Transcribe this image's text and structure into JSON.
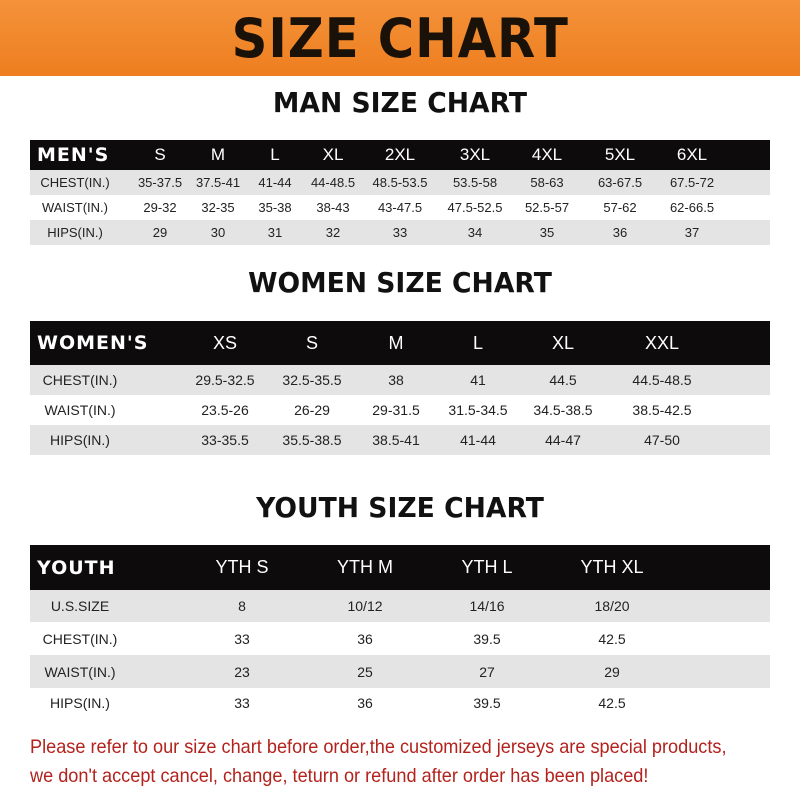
{
  "banner_title": "SIZE CHART",
  "men": {
    "title": "MAN SIZE CHART",
    "header": [
      "MEN'S",
      "S",
      "M",
      "L",
      "XL",
      "2XL",
      "3XL",
      "4XL",
      "5XL",
      "6XL"
    ],
    "rows": [
      [
        "CHEST(IN.)",
        "35-37.5",
        "37.5-41",
        "41-44",
        "44-48.5",
        "48.5-53.5",
        "53.5-58",
        "58-63",
        "63-67.5",
        "67.5-72"
      ],
      [
        "WAIST(IN.)",
        "29-32",
        "32-35",
        "35-38",
        "38-43",
        "43-47.5",
        "47.5-52.5",
        "52.5-57",
        "57-62",
        "62-66.5"
      ],
      [
        "HIPS(IN.)",
        "29",
        "30",
        "31",
        "32",
        "33",
        "34",
        "35",
        "36",
        "37"
      ]
    ]
  },
  "women": {
    "title": "WOMEN SIZE CHART",
    "header": [
      "WOMEN'S",
      "XS",
      "S",
      "M",
      "L",
      "XL",
      "XXL"
    ],
    "rows": [
      [
        "CHEST(IN.)",
        "29.5-32.5",
        "32.5-35.5",
        "38",
        "41",
        "44.5",
        "44.5-48.5"
      ],
      [
        "WAIST(IN.)",
        "23.5-26",
        "26-29",
        "29-31.5",
        "31.5-34.5",
        "34.5-38.5",
        "38.5-42.5"
      ],
      [
        "HIPS(IN.)",
        "33-35.5",
        "35.5-38.5",
        "38.5-41",
        "41-44",
        "44-47",
        "47-50"
      ]
    ]
  },
  "youth": {
    "title": "YOUTH SIZE CHART",
    "header": [
      "YOUTH",
      "YTH S",
      "YTH M",
      "YTH L",
      "YTH XL"
    ],
    "rows": [
      [
        "U.S.SIZE",
        "8",
        "10/12",
        "14/16",
        "18/20"
      ],
      [
        "CHEST(IN.)",
        "33",
        "36",
        "39.5",
        "42.5"
      ],
      [
        "WAIST(IN.)",
        "23",
        "25",
        "27",
        "29"
      ],
      [
        "HIPS(IN.)",
        "33",
        "36",
        "39.5",
        "42.5"
      ]
    ]
  },
  "notice": [
    "Please refer to our size chart before order,the customized jerseys are special products,",
    "we don't accept cancel, change, teturn or refund after order has been placed!"
  ],
  "colors": {
    "banner": "#f08a2a",
    "header_row": "#0d0b0b",
    "stripe": "#e4e4e4",
    "notice": "#b3221c"
  }
}
